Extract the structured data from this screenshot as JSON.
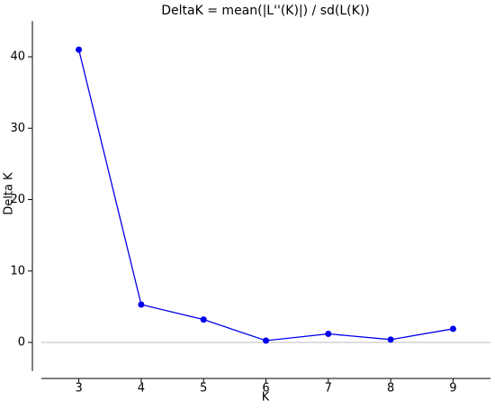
{
  "chart_data": {
    "type": "line",
    "title": "DeltaK = mean(|L''(K)|) / sd(L(K))",
    "x_label": "K",
    "y_label": "Delta K",
    "x": [
      3,
      4,
      5,
      6,
      7,
      8,
      9
    ],
    "series": [
      {
        "name": "Delta K",
        "color": "#0000ee",
        "values": [
          41.0,
          5.3,
          3.2,
          0.25,
          1.2,
          0.4,
          1.9
        ]
      }
    ],
    "xlim": [
      2.4,
      9.6
    ],
    "xticks": [
      3,
      4,
      5,
      6,
      7,
      8,
      9
    ],
    "ylim": [
      -4,
      45
    ],
    "yticks": [
      0,
      10,
      20,
      30,
      40
    ],
    "zero_line": true
  }
}
